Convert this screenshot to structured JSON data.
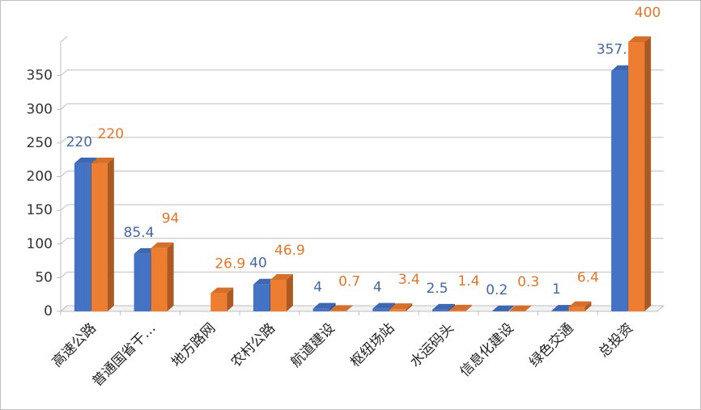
{
  "chart_data": {
    "type": "bar3d",
    "categories": [
      "高速公路",
      "普通国省干…",
      "地方路网",
      "农村公路",
      "航道建设",
      "枢纽场站",
      "水运码头",
      "信息化建设",
      "绿色交通",
      "总投资"
    ],
    "series": [
      {
        "color": "#4472c4",
        "label_color": "#44689e",
        "values": [
          220,
          85.4,
          null,
          40,
          4,
          4,
          2.5,
          0.2,
          1,
          357.1
        ]
      },
      {
        "color": "#ed7d31",
        "label_color": "#e0762c",
        "values": [
          220,
          94,
          26.9,
          46.9,
          0.7,
          3.4,
          1.4,
          0.3,
          6.4,
          400
        ]
      }
    ],
    "ylim": [
      0,
      400
    ],
    "yticks": [
      0,
      50,
      100,
      150,
      200,
      250,
      300,
      350
    ],
    "grid": true
  }
}
